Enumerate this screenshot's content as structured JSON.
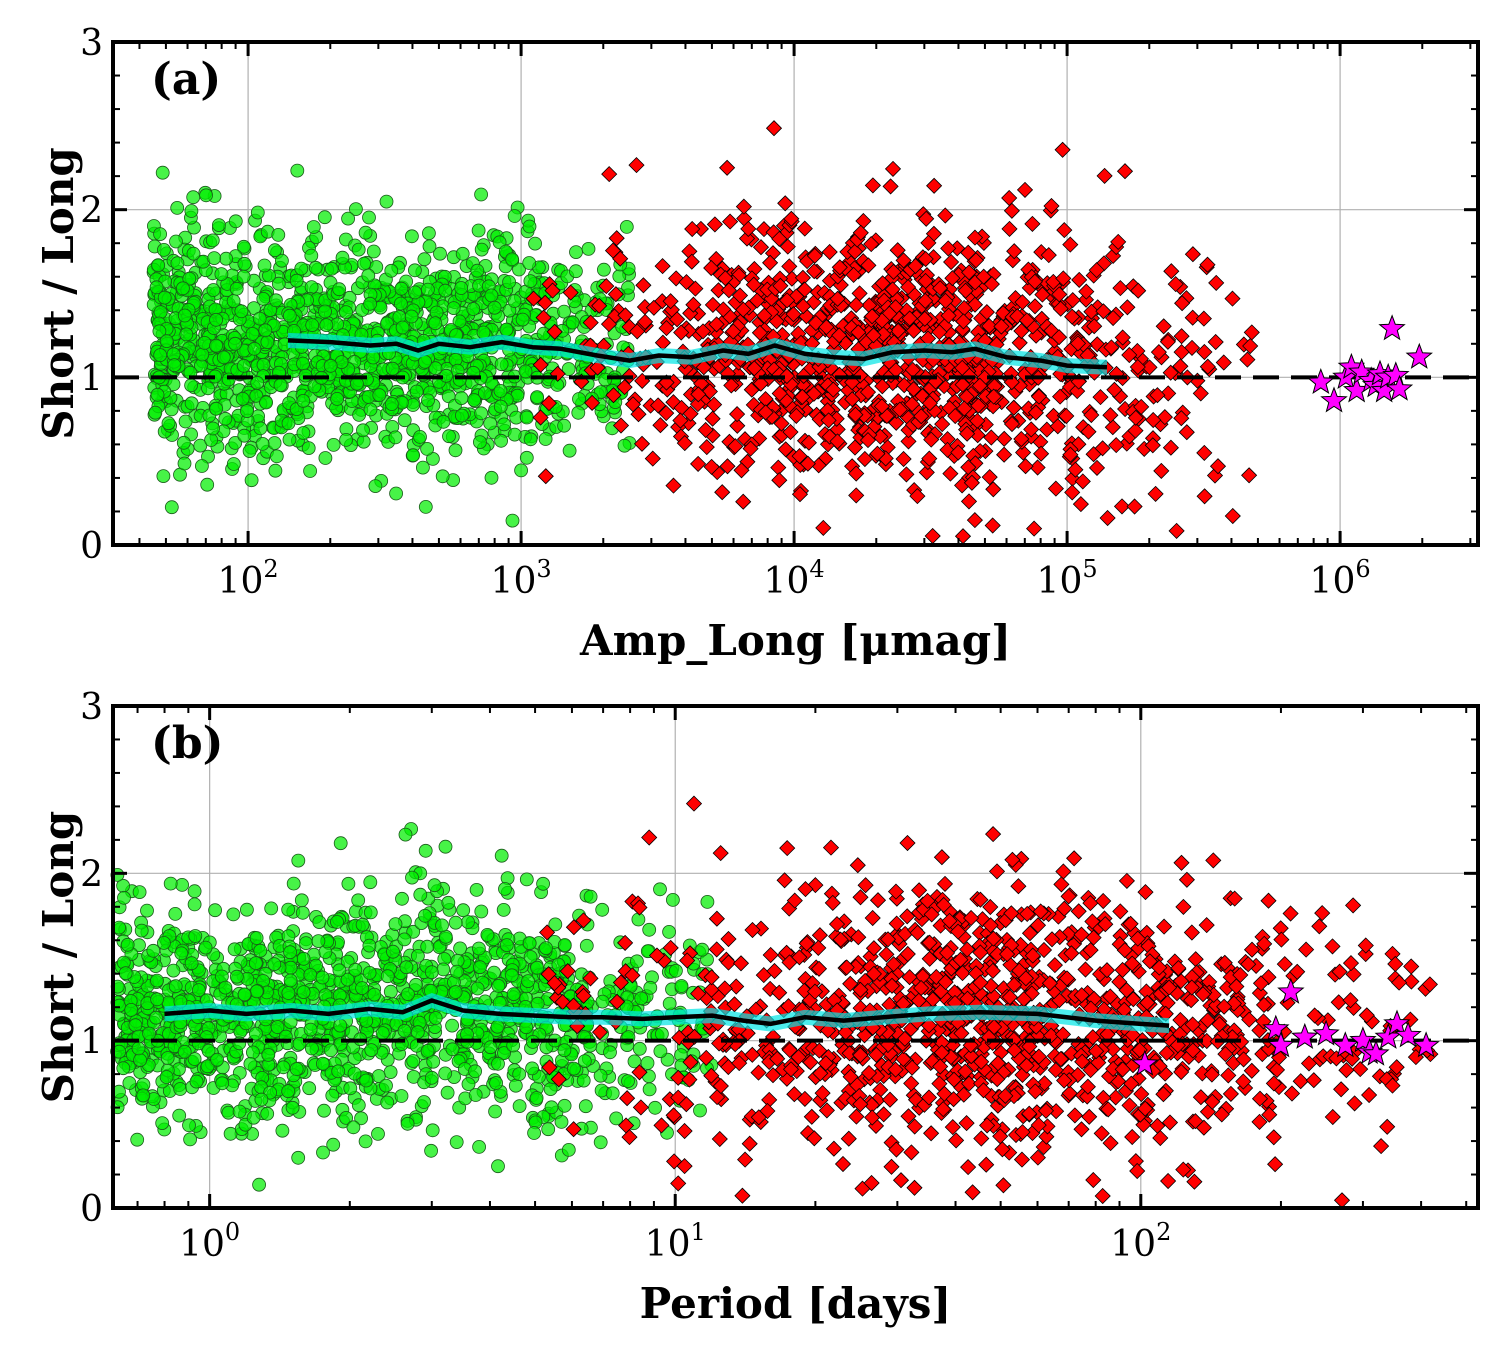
{
  "chart_data": [
    {
      "panel_label": "(a)",
      "type": "scatter",
      "xscale": "log",
      "xlabel": "Amp_Long [μmag]",
      "ylabel": "Short / Long",
      "xlim": [
        32,
        3200000
      ],
      "ylim": [
        0,
        3
      ],
      "xticks": [
        100,
        1000,
        10000,
        100000,
        1000000
      ],
      "xtick_base": "10",
      "xtick_exps": [
        "2",
        "3",
        "4",
        "5",
        "6"
      ],
      "yticks": [
        0,
        1,
        2,
        3
      ],
      "ytick_labels": [
        "0",
        "1",
        "2",
        "3"
      ],
      "grid": true,
      "reference_line": 1.0,
      "series": [
        {
          "name": "green circles",
          "marker": "circle",
          "color": "#00ee00",
          "approx_count": 1500,
          "x_range": [
            45,
            2500
          ],
          "y_center": 1.2,
          "y_spread": 0.33
        },
        {
          "name": "red diamonds",
          "marker": "diamond",
          "color": "#ff0000",
          "approx_count": 1200,
          "x_range": [
            1100,
            480000
          ],
          "y_center": 1.15,
          "y_spread": 0.4
        },
        {
          "name": "magenta stars",
          "marker": "star",
          "color": "#ff00ff",
          "points": [
            [
              850000,
              0.97
            ],
            [
              950000,
              0.86
            ],
            [
              1050000,
              1.0
            ],
            [
              1100000,
              1.06
            ],
            [
              1150000,
              0.92
            ],
            [
              1200000,
              1.03
            ],
            [
              1300000,
              0.98
            ],
            [
              1350000,
              0.95
            ],
            [
              1400000,
              1.02
            ],
            [
              1450000,
              0.92
            ],
            [
              1500000,
              1.0
            ],
            [
              1550000,
              1.29
            ],
            [
              1600000,
              1.01
            ],
            [
              1650000,
              0.93
            ],
            [
              1950000,
              1.12
            ]
          ]
        },
        {
          "name": "running median",
          "marker": "line",
          "color": "#000000",
          "band_color": "#00e5e5",
          "band_halfwidth": 0.045,
          "points": [
            [
              140,
              1.22
            ],
            [
              200,
              1.21
            ],
            [
              280,
              1.19
            ],
            [
              350,
              1.2
            ],
            [
              420,
              1.16
            ],
            [
              500,
              1.2
            ],
            [
              650,
              1.18
            ],
            [
              850,
              1.21
            ],
            [
              1100,
              1.18
            ],
            [
              1400,
              1.17
            ],
            [
              1900,
              1.13
            ],
            [
              2500,
              1.1
            ],
            [
              3200,
              1.13
            ],
            [
              4200,
              1.12
            ],
            [
              5500,
              1.16
            ],
            [
              6800,
              1.14
            ],
            [
              8500,
              1.19
            ],
            [
              11000,
              1.14
            ],
            [
              14000,
              1.12
            ],
            [
              18000,
              1.11
            ],
            [
              23000,
              1.15
            ],
            [
              30000,
              1.16
            ],
            [
              38000,
              1.15
            ],
            [
              46000,
              1.17
            ],
            [
              60000,
              1.12
            ],
            [
              80000,
              1.1
            ],
            [
              100000,
              1.07
            ],
            [
              140000,
              1.06
            ]
          ]
        }
      ]
    },
    {
      "panel_label": "(b)",
      "type": "scatter",
      "xscale": "log",
      "xlabel": "Period [days]",
      "ylabel": "Short / Long",
      "xlim": [
        0.62,
        530
      ],
      "ylim": [
        0,
        3
      ],
      "xticks": [
        1,
        10,
        100
      ],
      "xtick_base": "10",
      "xtick_exps": [
        "0",
        "1",
        "2"
      ],
      "yticks": [
        0,
        1,
        2,
        3
      ],
      "ytick_labels": [
        "0",
        "1",
        "2",
        "3"
      ],
      "grid": true,
      "reference_line": 1.0,
      "series": [
        {
          "name": "green circles",
          "marker": "circle",
          "color": "#00ee00",
          "approx_count": 1500,
          "x_range": [
            0.62,
            12
          ],
          "y_center": 1.15,
          "y_spread": 0.33
        },
        {
          "name": "red diamonds",
          "marker": "diamond",
          "color": "#ff0000",
          "approx_count": 1200,
          "x_range": [
            5.3,
            420
          ],
          "y_center": 1.15,
          "y_spread": 0.4
        },
        {
          "name": "magenta stars",
          "marker": "star",
          "color": "#ff00ff",
          "points": [
            [
              102,
              0.86
            ],
            [
              195,
              1.07
            ],
            [
              200,
              0.97
            ],
            [
              210,
              1.29
            ],
            [
              225,
              1.02
            ],
            [
              250,
              1.04
            ],
            [
              275,
              0.97
            ],
            [
              300,
              1.0
            ],
            [
              310,
              0.93
            ],
            [
              320,
              0.92
            ],
            [
              340,
              1.02
            ],
            [
              355,
              1.1
            ],
            [
              375,
              1.03
            ],
            [
              410,
              0.97
            ]
          ]
        },
        {
          "name": "running median",
          "marker": "line",
          "color": "#000000",
          "band_color": "#00e5e5",
          "band_halfwidth": 0.045,
          "points": [
            [
              0.8,
              1.16
            ],
            [
              1.0,
              1.18
            ],
            [
              1.2,
              1.16
            ],
            [
              1.5,
              1.18
            ],
            [
              1.8,
              1.16
            ],
            [
              2.2,
              1.19
            ],
            [
              2.6,
              1.17
            ],
            [
              3.0,
              1.24
            ],
            [
              3.5,
              1.18
            ],
            [
              4.2,
              1.16
            ],
            [
              5.0,
              1.15
            ],
            [
              6.0,
              1.14
            ],
            [
              7.0,
              1.14
            ],
            [
              8.5,
              1.13
            ],
            [
              10.0,
              1.14
            ],
            [
              12.0,
              1.15
            ],
            [
              14.0,
              1.12
            ],
            [
              16.0,
              1.1
            ],
            [
              19.0,
              1.14
            ],
            [
              23.0,
              1.12
            ],
            [
              28.0,
              1.14
            ],
            [
              35.0,
              1.16
            ],
            [
              45.0,
              1.17
            ],
            [
              60.0,
              1.16
            ],
            [
              80.0,
              1.12
            ],
            [
              100.0,
              1.1
            ],
            [
              115.0,
              1.09
            ]
          ]
        }
      ]
    }
  ]
}
